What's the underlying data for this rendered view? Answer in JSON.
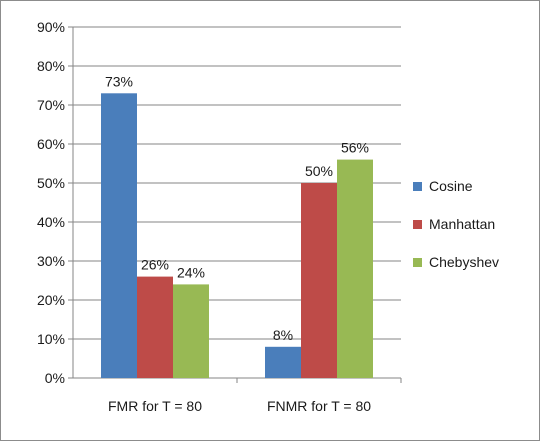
{
  "chart_data": {
    "type": "bar",
    "title": "",
    "xlabel": "",
    "ylabel": "",
    "categories": [
      "FMR for T = 80",
      "FNMR for T = 80"
    ],
    "series": [
      {
        "name": "Cosine",
        "color": "#4a7ebb",
        "values": [
          73,
          8
        ],
        "labels": [
          "73%",
          "8%"
        ]
      },
      {
        "name": "Manhattan",
        "color": "#be4b48",
        "values": [
          26,
          50
        ],
        "labels": [
          "26%",
          "50%"
        ]
      },
      {
        "name": "Chebyshev",
        "color": "#98b954",
        "values": [
          24,
          56
        ],
        "labels": [
          "24%",
          "56%"
        ]
      }
    ],
    "ylim": [
      0,
      90
    ],
    "yticks": [
      0,
      10,
      20,
      30,
      40,
      50,
      60,
      70,
      80,
      90
    ],
    "ytick_labels": [
      "0%",
      "10%",
      "20%",
      "30%",
      "40%",
      "50%",
      "60%",
      "70%",
      "80%",
      "90%"
    ],
    "grid": true,
    "legend": "right"
  }
}
